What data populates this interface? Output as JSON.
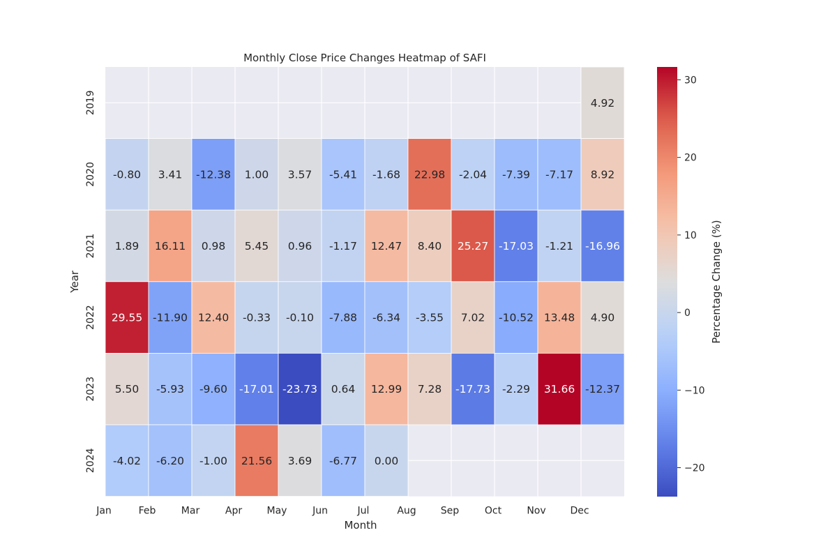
{
  "chart_data": {
    "type": "heatmap",
    "title": "Monthly Close Price Changes Heatmap of SAFI",
    "xlabel": "Month",
    "ylabel": "Year",
    "colorbar_label": "Percentage Change (%)",
    "x_categories": [
      "Jan",
      "Feb",
      "Mar",
      "Apr",
      "May",
      "Jun",
      "Jul",
      "Aug",
      "Sep",
      "Oct",
      "Nov",
      "Dec"
    ],
    "y_categories": [
      "2019",
      "2020",
      "2021",
      "2022",
      "2023",
      "2024"
    ],
    "values": [
      [
        null,
        null,
        null,
        null,
        null,
        null,
        null,
        null,
        null,
        null,
        null,
        4.92
      ],
      [
        -0.8,
        3.41,
        -12.38,
        1.0,
        3.57,
        -5.41,
        -1.68,
        22.98,
        -2.04,
        -7.39,
        -7.17,
        8.92
      ],
      [
        1.89,
        16.11,
        0.98,
        5.45,
        0.96,
        -1.17,
        12.47,
        8.4,
        25.27,
        -17.03,
        -1.21,
        -16.96
      ],
      [
        29.55,
        -11.9,
        12.4,
        -0.33,
        -0.1,
        -7.88,
        -6.34,
        -3.55,
        7.02,
        -10.52,
        13.48,
        4.9
      ],
      [
        5.5,
        -5.93,
        -9.6,
        -17.01,
        -23.73,
        0.64,
        12.99,
        7.28,
        -17.73,
        -2.29,
        31.66,
        -12.37
      ],
      [
        -4.02,
        -6.2,
        -1.0,
        21.56,
        3.69,
        -6.77,
        0.0,
        null,
        null,
        null,
        null,
        null
      ]
    ],
    "value_range": [
      -23.73,
      31.66
    ],
    "colorbar_ticks": [
      30,
      20,
      10,
      0,
      -10,
      -20
    ],
    "colormap": "coolwarm",
    "missing_color": "#eaeaf2",
    "grid_color": "#ffffff"
  }
}
